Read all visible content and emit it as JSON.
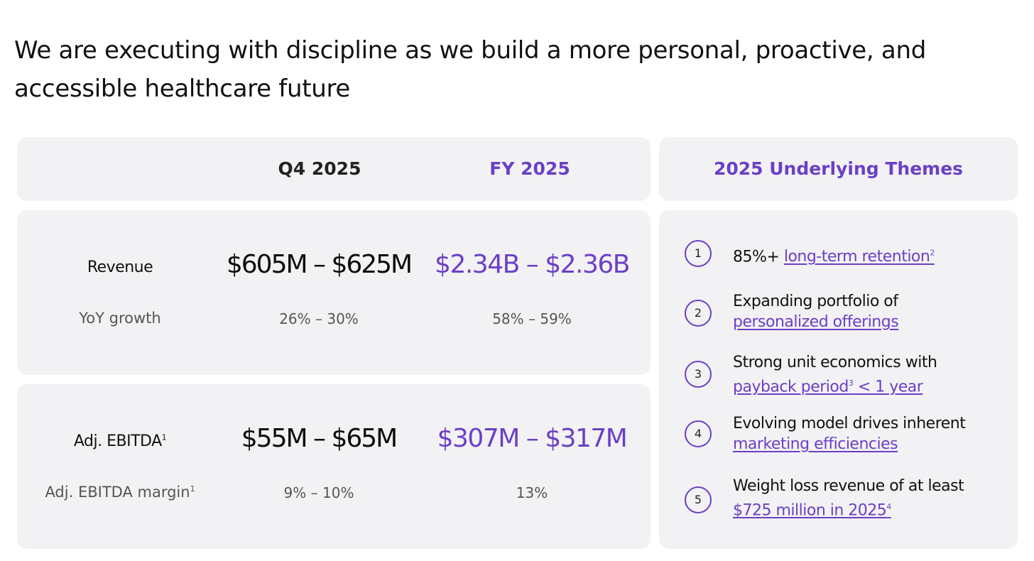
{
  "headline": "We are executing with discipline as we build a more personal, proactive, and accessible healthcare future",
  "columns": {
    "q4": "Q4 2025",
    "fy": "FY 2025",
    "themes": "2025 Underlying Themes"
  },
  "revenue": {
    "label": "Revenue",
    "q4": "$605M – $625M",
    "fy": "$2.34B – $2.36B",
    "sub_label": "YoY growth",
    "sub_q4": "26% – 30%",
    "sub_fy": "58% – 59%"
  },
  "ebitda": {
    "label": "Adj. EBITDA",
    "label_footnote": "1",
    "q4": "$55M – $65M",
    "fy": "$307M – $317M",
    "sub_label": "Adj. EBITDA margin",
    "sub_label_footnote": "1",
    "sub_q4": "9% – 10%",
    "sub_fy": "13%"
  },
  "themes": [
    {
      "number": "1",
      "text": "85%+ ",
      "link": "long-term retention",
      "footnote": "2",
      "link_suffix": ""
    },
    {
      "number": "2",
      "text": "Expanding portfolio of",
      "link": "personalized offerings",
      "footnote": "",
      "link_suffix": ""
    },
    {
      "number": "3",
      "text": "Strong unit economics with",
      "link": "payback period",
      "footnote": "3",
      "link_suffix": " < 1 year"
    },
    {
      "number": "4",
      "text": "Evolving model drives inherent",
      "link": "marketing efficiencies",
      "footnote": "",
      "link_suffix": ""
    },
    {
      "number": "5",
      "text": "Weight loss revenue of at least",
      "link": "$725 million in 2025",
      "footnote": "4",
      "link_suffix": ""
    }
  ],
  "colors": {
    "accent": "#6b3fc6",
    "panel": "#f2f2f4",
    "text": "#111111",
    "muted": "#555555"
  }
}
